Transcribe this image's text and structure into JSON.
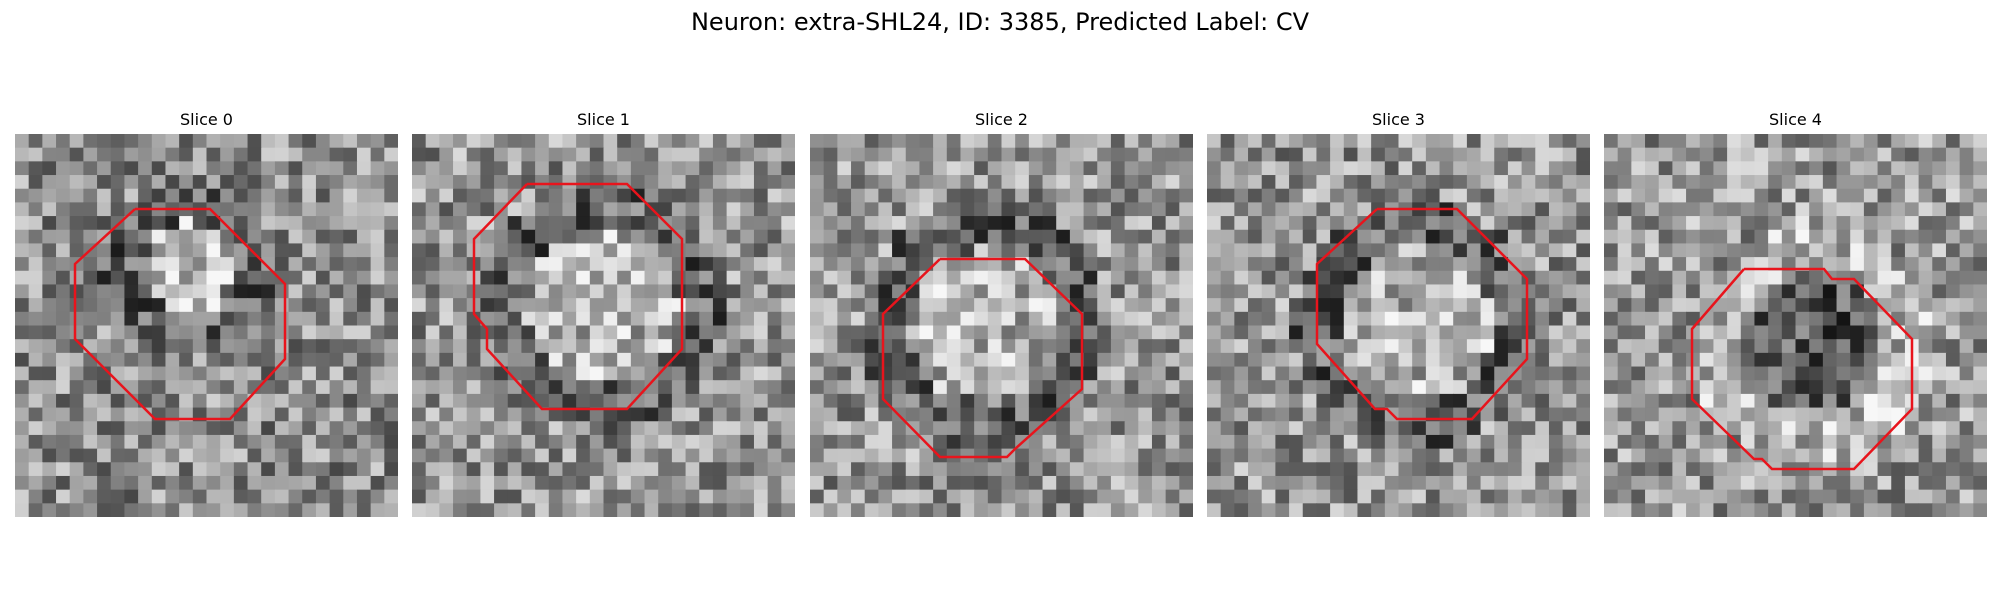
{
  "figure": {
    "title": "Neuron: extra-SHL24, ID: 3385, Predicted Label: CV"
  },
  "contour_color": "#e8141c",
  "panels": [
    {
      "label": "Slice 0",
      "pattern": "bright-blob-upper-center"
    },
    {
      "label": "Slice 1",
      "pattern": "bright-center-dark-ring"
    },
    {
      "label": "Slice 2",
      "pattern": "bright-center-dark-ring"
    },
    {
      "label": "Slice 3",
      "pattern": "bright-center-dark-ring"
    },
    {
      "label": "Slice 4",
      "pattern": "dark-center-bright-surround"
    }
  ]
}
